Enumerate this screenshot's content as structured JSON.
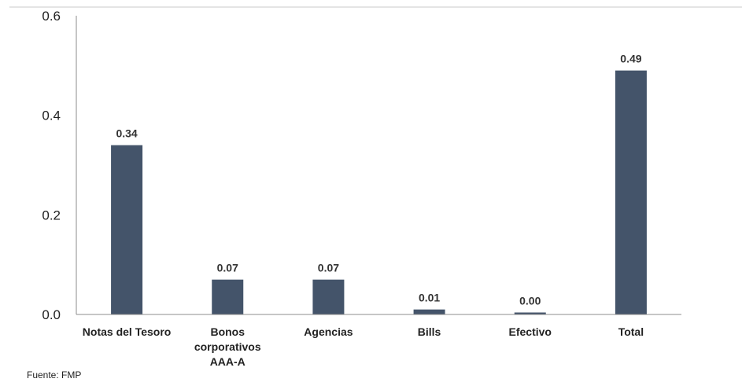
{
  "chart_data": {
    "type": "bar",
    "title": "",
    "xlabel": "",
    "ylabel": "",
    "categories": [
      [
        "Notas del Tesoro"
      ],
      [
        "Bonos",
        "corporativos",
        "AAA-A"
      ],
      [
        "Agencias"
      ],
      [
        "Bills"
      ],
      [
        "Efectivo"
      ],
      [
        "Total"
      ]
    ],
    "values": [
      0.34,
      0.07,
      0.07,
      0.01,
      0.0,
      0.49
    ],
    "data_labels": [
      "0.34",
      "0.07",
      "0.07",
      "0.01",
      "0.00",
      "0.49"
    ],
    "ylim": [
      0,
      0.6
    ],
    "yticks": [
      "0.0",
      "0.2",
      "0.4",
      "0.6"
    ],
    "grid": false,
    "legend": "none",
    "bar_color": "#44546a"
  },
  "source": "Fuente: FMP"
}
